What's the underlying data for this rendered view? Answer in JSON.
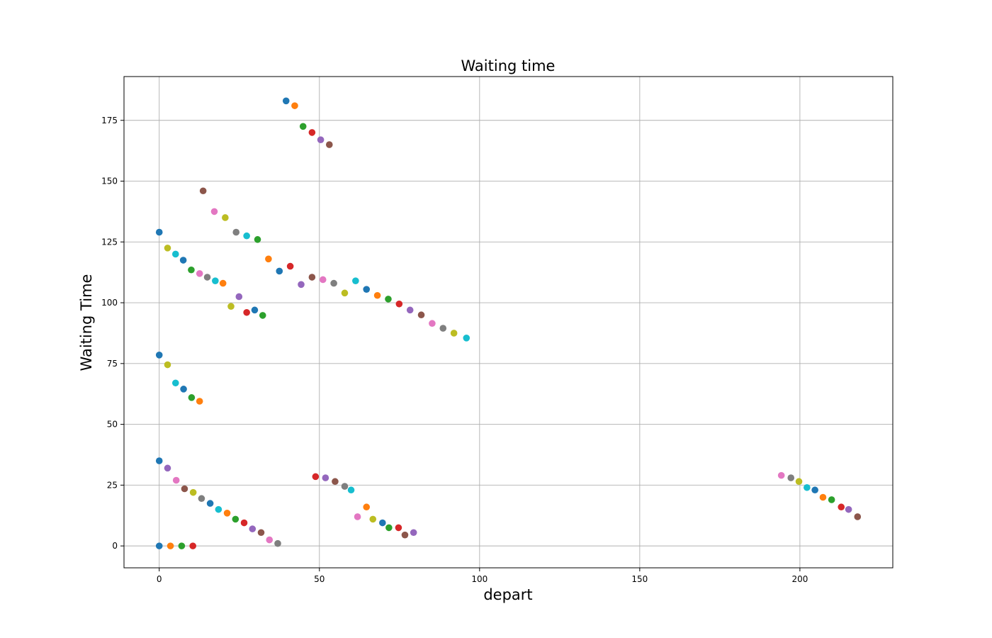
{
  "chart_data": {
    "type": "scatter",
    "title": "Waiting time",
    "xlabel": "depart",
    "ylabel": "Waiting Time",
    "xlim": [
      -11,
      229
    ],
    "ylim": [
      -9,
      193
    ],
    "xticks": [
      0,
      50,
      100,
      150,
      200
    ],
    "yticks": [
      0,
      25,
      50,
      75,
      100,
      125,
      150,
      175
    ],
    "grid": true,
    "palette": [
      "#1f77b4",
      "#ff7f0e",
      "#2ca02c",
      "#d62728",
      "#9467bd",
      "#8c564b",
      "#e377c2",
      "#7f7f7f",
      "#bcbd22",
      "#17becf"
    ],
    "series": [
      {
        "points": [
          [
            0,
            0
          ],
          [
            3.5,
            0
          ],
          [
            7,
            0
          ],
          [
            10.5,
            0
          ]
        ],
        "colors": [
          0,
          1,
          2,
          3
        ]
      },
      {
        "points": [
          [
            0,
            35
          ],
          [
            2.6,
            32
          ],
          [
            5.3,
            27
          ],
          [
            7.9,
            23.5
          ],
          [
            10.6,
            22
          ],
          [
            13.2,
            19.5
          ],
          [
            15.9,
            17.5
          ],
          [
            18.5,
            15
          ],
          [
            21.2,
            13.5
          ],
          [
            23.8,
            11
          ],
          [
            26.5,
            9.5
          ],
          [
            29.1,
            7
          ],
          [
            31.8,
            5.5
          ],
          [
            34.4,
            2.5
          ],
          [
            37,
            1
          ]
        ],
        "colors": [
          0,
          4,
          6,
          5,
          8,
          7,
          0,
          9,
          1,
          2,
          3,
          4,
          5,
          6,
          7
        ]
      },
      {
        "points": [
          [
            0,
            78.5
          ],
          [
            2.6,
            74.5
          ],
          [
            5.1,
            67
          ],
          [
            7.6,
            64.5
          ],
          [
            10.1,
            61
          ],
          [
            12.6,
            59.5
          ]
        ],
        "colors": [
          0,
          8,
          9,
          0,
          2,
          1
        ]
      },
      {
        "points": [
          [
            0,
            129
          ],
          [
            2.6,
            122.5
          ],
          [
            5.1,
            120
          ],
          [
            7.5,
            117.5
          ],
          [
            10,
            113.5
          ],
          [
            12.6,
            112
          ],
          [
            15,
            110.5
          ],
          [
            17.5,
            109
          ],
          [
            19.9,
            108
          ],
          [
            22.4,
            98.5
          ],
          [
            24.9,
            102.5
          ],
          [
            27.3,
            96
          ],
          [
            29.8,
            97
          ],
          [
            32.3,
            94.8
          ]
        ],
        "colors": [
          0,
          8,
          9,
          0,
          2,
          6,
          7,
          9,
          1,
          8,
          4,
          3,
          0,
          2
        ]
      },
      {
        "points": [
          [
            13.7,
            146
          ],
          [
            17.2,
            137.5
          ],
          [
            20.6,
            135
          ],
          [
            24,
            129
          ],
          [
            27.3,
            127.5
          ],
          [
            30.7,
            126
          ],
          [
            34.1,
            118
          ],
          [
            37.5,
            113
          ],
          [
            40.9,
            115
          ],
          [
            44.3,
            107.5
          ],
          [
            47.7,
            110.5
          ],
          [
            51.1,
            109.5
          ],
          [
            54.5,
            108
          ],
          [
            57.9,
            104
          ],
          [
            61.3,
            109
          ],
          [
            64.7,
            105.5
          ],
          [
            68.1,
            103
          ],
          [
            71.5,
            101.5
          ],
          [
            74.9,
            99.5
          ],
          [
            78.3,
            97
          ],
          [
            81.8,
            95
          ],
          [
            85.2,
            91.5
          ],
          [
            88.6,
            89.5
          ],
          [
            92,
            87.5
          ],
          [
            95.9,
            85.5
          ]
        ],
        "colors": [
          5,
          6,
          8,
          7,
          9,
          2,
          1,
          0,
          3,
          4,
          5,
          6,
          7,
          8,
          9,
          0,
          1,
          2,
          3,
          4,
          5,
          6,
          7,
          8,
          9
        ]
      },
      {
        "points": [
          [
            39.6,
            183
          ],
          [
            42.3,
            181
          ],
          [
            44.9,
            172.5
          ],
          [
            47.7,
            170
          ],
          [
            50.4,
            167
          ],
          [
            53.1,
            165
          ]
        ],
        "colors": [
          0,
          1,
          2,
          3,
          4,
          5
        ]
      },
      {
        "points": [
          [
            48.8,
            28.5
          ],
          [
            51.9,
            28
          ],
          [
            54.9,
            26.5
          ],
          [
            57.9,
            24.5
          ],
          [
            59.9,
            23
          ],
          [
            61.9,
            12
          ],
          [
            64.7,
            16
          ],
          [
            66.7,
            11
          ],
          [
            69.7,
            9.5
          ],
          [
            71.7,
            7.5
          ],
          [
            74.7,
            7.5
          ],
          [
            76.7,
            4.5
          ],
          [
            79.4,
            5.5
          ]
        ],
        "colors": [
          3,
          4,
          5,
          7,
          9,
          6,
          1,
          8,
          0,
          2,
          3,
          5,
          4
        ]
      },
      {
        "points": [
          [
            194.2,
            29
          ],
          [
            197.2,
            28
          ],
          [
            199.7,
            26.5
          ],
          [
            202.2,
            24
          ],
          [
            204.7,
            23
          ],
          [
            207.2,
            20
          ],
          [
            209.9,
            19
          ],
          [
            212.9,
            16
          ],
          [
            215.2,
            15
          ],
          [
            218,
            12
          ]
        ],
        "colors": [
          6,
          7,
          8,
          9,
          0,
          1,
          2,
          3,
          4,
          5
        ]
      }
    ]
  }
}
